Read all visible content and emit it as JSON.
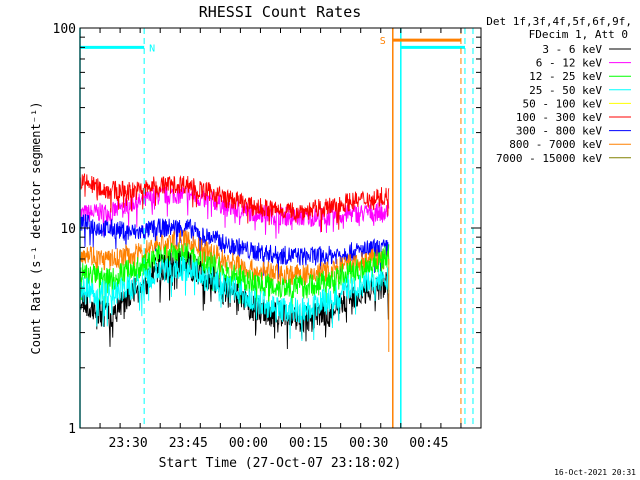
{
  "chart_data": {
    "type": "line",
    "title": "RHESSI Count Rates",
    "xlabel": "Start Time (27-Oct-07 23:18:02)",
    "ylabel": "Count Rate (s⁻¹ detector segment⁻¹)",
    "y_scale": "log",
    "ylim": [
      1,
      100
    ],
    "xlim": [
      "23:18",
      "00:58"
    ],
    "y_ticks": [
      {
        "value": 1,
        "label": "1"
      },
      {
        "value": 10,
        "label": "10"
      },
      {
        "value": 100,
        "label": "100"
      }
    ],
    "x_ticks": [
      {
        "value": "23:30",
        "label": "23:30"
      },
      {
        "value": "23:45",
        "label": "23:45"
      },
      {
        "value": "00:00",
        "label": "00:00"
      },
      {
        "value": "00:15",
        "label": "00:15"
      },
      {
        "value": "00:30",
        "label": "00:30"
      },
      {
        "value": "00:45",
        "label": "00:45"
      }
    ],
    "legend_header": [
      "Det 1f,3f,4f,5f,6f,9f,",
      "FDecim 1, Att 0"
    ],
    "legend_position": "right",
    "data_end": "00:35",
    "x_times": [
      "23:18",
      "23:25",
      "23:32",
      "23:38",
      "23:44",
      "23:50",
      "23:56",
      "00:02",
      "00:08",
      "00:14",
      "00:20",
      "00:26",
      "00:32",
      "00:35"
    ],
    "series": [
      {
        "name": "3 - 6 keV",
        "color": "#000000",
        "values": [
          4.3,
          3.7,
          4.9,
          6.3,
          6.6,
          5.6,
          4.6,
          3.9,
          3.7,
          3.5,
          3.7,
          4.6,
          5.1,
          5.2
        ]
      },
      {
        "name": "6 - 12 keV",
        "color": "#ff00ff",
        "values": [
          11.8,
          12.0,
          13.4,
          14.5,
          14.8,
          13.8,
          12.6,
          11.9,
          11.5,
          11.3,
          11.4,
          11.8,
          12.0,
          12.2
        ]
      },
      {
        "name": "12 - 25 keV",
        "color": "#00ff00",
        "values": [
          6.0,
          5.6,
          6.3,
          7.2,
          7.4,
          6.6,
          5.8,
          5.3,
          5.1,
          5.1,
          5.4,
          6.0,
          6.8,
          7.2
        ]
      },
      {
        "name": "25 - 50 keV",
        "color": "#00ffff",
        "values": [
          4.9,
          4.7,
          5.1,
          6.0,
          6.3,
          5.6,
          4.9,
          4.3,
          3.9,
          3.9,
          4.3,
          5.1,
          5.4,
          5.5
        ]
      },
      {
        "name": "50 - 100 keV",
        "color": "#ffff00",
        "values": []
      },
      {
        "name": "100 - 300 keV",
        "color": "#ff0000",
        "values": [
          17.0,
          15.5,
          15.4,
          16.4,
          16.6,
          15.2,
          13.8,
          12.7,
          12.3,
          12.2,
          12.7,
          13.6,
          14.3,
          14.4
        ]
      },
      {
        "name": "300 - 800 keV",
        "color": "#0000ff",
        "values": [
          10.6,
          9.9,
          9.5,
          10.0,
          10.1,
          9.0,
          8.1,
          7.6,
          7.3,
          7.2,
          7.3,
          7.6,
          7.9,
          7.9
        ]
      },
      {
        "name": "800 - 7000 keV",
        "color": "#ff8000",
        "values": [
          7.6,
          6.9,
          7.4,
          8.3,
          8.6,
          7.6,
          6.7,
          6.1,
          5.9,
          5.8,
          6.1,
          6.6,
          7.0,
          6.9
        ]
      },
      {
        "name": "7000 - 15000 keV",
        "color": "#808000",
        "values": []
      }
    ],
    "annotations": [
      {
        "label": "N",
        "kind": "night",
        "color": "#00ffff",
        "start": "23:18",
        "end": "23:34",
        "end2": null,
        "level": 80
      },
      {
        "label": "",
        "kind": "night",
        "color": "#00ffff",
        "start": "00:38",
        "end": "00:54",
        "end2": "00:56",
        "level": 80
      },
      {
        "label": "S",
        "kind": "saa",
        "color": "#ff8000",
        "start": "00:36",
        "end": "00:53",
        "end2": null,
        "level": 87
      }
    ],
    "footer_timestamp": "16-Oct-2021 20:31"
  }
}
